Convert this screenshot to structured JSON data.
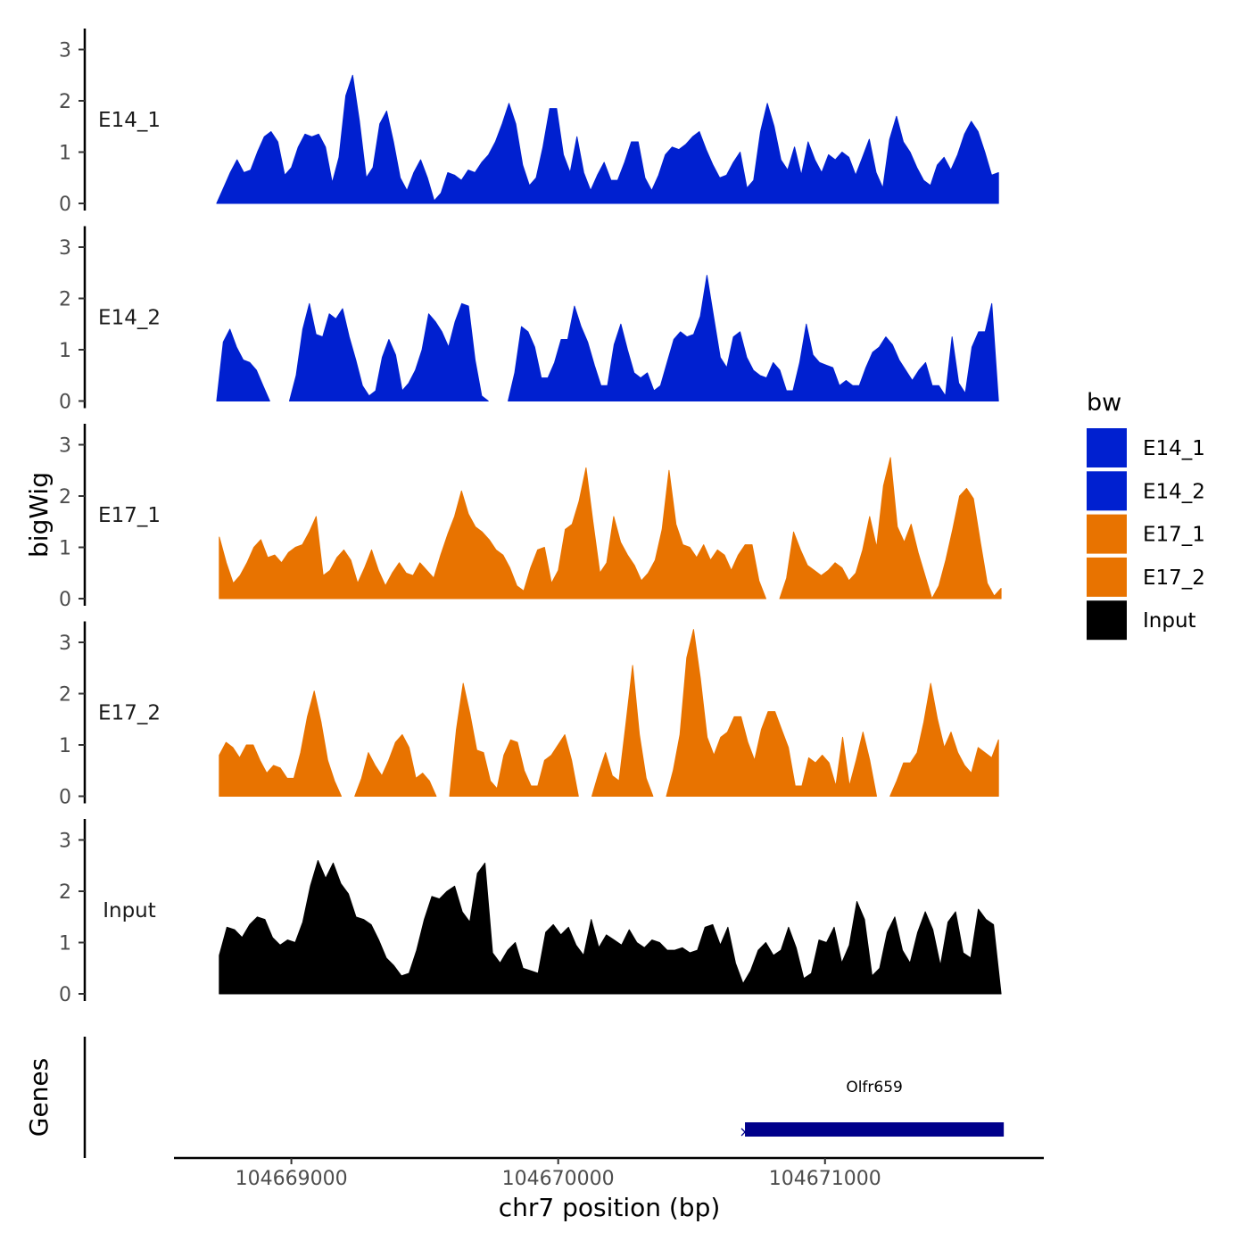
{
  "chart_data": {
    "type": "area",
    "chromosome": "chr7",
    "xlabel": "chr7 position (bp)",
    "ylabel": "bigWig",
    "genes_label": "Genes",
    "xlim": [
      104668560,
      104671820
    ],
    "x_ticks": [
      104669000,
      104670000,
      104671000
    ],
    "x_tick_labels": [
      "104669000",
      "104670000",
      "104671000"
    ],
    "ylim": [
      0,
      3.4
    ],
    "y_ticks": [
      0,
      1,
      2,
      3
    ],
    "y_tick_labels": [
      "0",
      "1",
      "2",
      "3"
    ],
    "legend": {
      "title": "bw",
      "position": "right",
      "entries": [
        {
          "label": "E14_1",
          "color": "#0020D0"
        },
        {
          "label": "E14_2",
          "color": "#0020D0"
        },
        {
          "label": "E17_1",
          "color": "#E87300"
        },
        {
          "label": "E17_2",
          "color": "#E87300"
        },
        {
          "label": "Input",
          "color": "#000000"
        }
      ]
    },
    "tracks": [
      {
        "name": "E14_1",
        "color": "#0020D0",
        "x_start": 104668720,
        "x_end": 104671650,
        "values": [
          0,
          0.3,
          0.6,
          0.85,
          0.6,
          0.65,
          1.0,
          1.3,
          1.4,
          1.2,
          0.55,
          0.7,
          1.1,
          1.35,
          1.3,
          1.35,
          1.1,
          0.4,
          0.9,
          2.1,
          2.5,
          1.6,
          0.5,
          0.7,
          1.55,
          1.8,
          1.2,
          0.5,
          0.25,
          0.6,
          0.85,
          0.5,
          0.05,
          0.2,
          0.6,
          0.55,
          0.45,
          0.65,
          0.6,
          0.8,
          0.95,
          1.2,
          1.55,
          1.95,
          1.55,
          0.75,
          0.35,
          0.5,
          1.1,
          1.85,
          1.85,
          0.95,
          0.6,
          1.3,
          0.6,
          0.25,
          0.55,
          0.8,
          0.45,
          0.45,
          0.8,
          1.2,
          1.2,
          0.5,
          0.25,
          0.55,
          0.95,
          1.1,
          1.05,
          1.15,
          1.3,
          1.4,
          1.05,
          0.75,
          0.5,
          0.55,
          0.8,
          1.0,
          0.3,
          0.45,
          1.4,
          1.95,
          1.5,
          0.85,
          0.65,
          1.1,
          0.55,
          1.2,
          0.85,
          0.6,
          0.95,
          0.85,
          1.0,
          0.9,
          0.55,
          0.9,
          1.25,
          0.6,
          0.3,
          1.25,
          1.7,
          1.2,
          1.0,
          0.7,
          0.45,
          0.35,
          0.75,
          0.9,
          0.65,
          0.95,
          1.35,
          1.6,
          1.4,
          1.0,
          0.55,
          0.6
        ]
      },
      {
        "name": "E14_2",
        "color": "#0020D0",
        "x_start": 104668720,
        "x_end": 104671650,
        "values": [
          0,
          1.15,
          1.4,
          1.05,
          0.8,
          0.75,
          0.6,
          0.3,
          0,
          null,
          null,
          0,
          0.5,
          1.4,
          1.9,
          1.3,
          1.25,
          1.7,
          1.6,
          1.8,
          1.25,
          0.8,
          0.3,
          0.1,
          0.2,
          0.85,
          1.2,
          0.9,
          0.2,
          0.35,
          0.6,
          1.0,
          1.7,
          1.55,
          1.35,
          1.05,
          1.55,
          1.9,
          1.85,
          0.8,
          0.1,
          0,
          null,
          null,
          0,
          0.55,
          1.45,
          1.35,
          1.05,
          0.45,
          0.45,
          0.75,
          1.2,
          1.2,
          1.85,
          1.45,
          1.15,
          0.7,
          0.3,
          0.3,
          1.1,
          1.5,
          1.0,
          0.55,
          0.45,
          0.55,
          0.2,
          0.3,
          0.75,
          1.2,
          1.35,
          1.25,
          1.3,
          1.65,
          2.45,
          1.65,
          0.85,
          0.65,
          1.25,
          1.35,
          0.85,
          0.6,
          0.5,
          0.45,
          0.75,
          0.6,
          0.2,
          0.2,
          0.75,
          1.5,
          0.9,
          0.75,
          0.7,
          0.65,
          0.3,
          0.4,
          0.3,
          0.3,
          0.65,
          0.95,
          1.05,
          1.25,
          1.1,
          0.8,
          0.6,
          0.4,
          0.6,
          0.75,
          0.3,
          0.3,
          0.1,
          1.25,
          0.35,
          0.15,
          1.05,
          1.35,
          1.35,
          1.9,
          0
        ]
      },
      {
        "name": "E17_1",
        "color": "#E87300",
        "x_start": 104668730,
        "x_end": 104671660,
        "values": [
          1.2,
          0.7,
          0.3,
          0.45,
          0.7,
          1.0,
          1.15,
          0.8,
          0.85,
          0.7,
          0.9,
          1.0,
          1.05,
          1.3,
          1.6,
          0.45,
          0.55,
          0.8,
          0.95,
          0.75,
          0.3,
          0.6,
          0.95,
          0.55,
          0.25,
          0.5,
          0.7,
          0.5,
          0.45,
          0.7,
          0.55,
          0.4,
          0.85,
          1.25,
          1.6,
          2.1,
          1.65,
          1.4,
          1.3,
          1.15,
          0.95,
          0.85,
          0.6,
          0.25,
          0.15,
          0.6,
          0.95,
          1.0,
          0.3,
          0.55,
          1.35,
          1.45,
          1.9,
          2.55,
          1.5,
          0.5,
          0.7,
          1.6,
          1.1,
          0.85,
          0.65,
          0.35,
          0.5,
          0.75,
          1.35,
          2.5,
          1.45,
          1.05,
          1.0,
          0.8,
          1.05,
          0.75,
          0.95,
          0.85,
          0.55,
          0.85,
          1.05,
          1.05,
          0.35,
          0,
          null,
          0,
          0.4,
          1.3,
          0.95,
          0.65,
          0.55,
          0.45,
          0.55,
          0.7,
          0.6,
          0.35,
          0.5,
          0.95,
          1.6,
          1.0,
          2.2,
          2.75,
          1.4,
          1.1,
          1.45,
          0.9,
          0.45,
          0,
          0.25,
          0.75,
          1.35,
          2.0,
          2.15,
          1.95,
          1.1,
          0.3,
          0.05,
          0.2
        ]
      },
      {
        "name": "E17_2",
        "color": "#E87300",
        "x_start": 104668730,
        "x_end": 104671650,
        "values": [
          0.8,
          1.05,
          0.95,
          0.75,
          1.0,
          1.0,
          0.7,
          0.45,
          0.6,
          0.55,
          0.35,
          0.35,
          0.85,
          1.55,
          2.05,
          1.45,
          0.7,
          0.3,
          0,
          null,
          0,
          0.35,
          0.85,
          0.6,
          0.4,
          0.7,
          1.05,
          1.2,
          0.95,
          0.35,
          0.45,
          0.3,
          0,
          null,
          0,
          1.3,
          2.2,
          1.6,
          0.9,
          0.85,
          0.3,
          0.15,
          0.8,
          1.1,
          1.05,
          0.5,
          0.2,
          0.2,
          0.7,
          0.8,
          1.0,
          1.2,
          0.7,
          0,
          null,
          0,
          0.45,
          0.85,
          0.4,
          0.3,
          1.4,
          2.55,
          1.2,
          0.35,
          0,
          null,
          0,
          0.5,
          1.2,
          2.7,
          3.25,
          2.3,
          1.15,
          0.8,
          1.15,
          1.25,
          1.55,
          1.55,
          1.05,
          0.7,
          1.3,
          1.65,
          1.65,
          1.3,
          0.95,
          0.2,
          0.2,
          0.75,
          0.65,
          0.8,
          0.65,
          0.2,
          1.15,
          0.2,
          0.7,
          1.25,
          0.7,
          0,
          null,
          0,
          0.3,
          0.65,
          0.65,
          0.85,
          1.45,
          2.2,
          1.5,
          0.95,
          1.25,
          0.85,
          0.6,
          0.45,
          0.95,
          0.85,
          0.75,
          1.1
        ]
      },
      {
        "name": "Input",
        "color": "#000000",
        "x_start": 104668730,
        "x_end": 104671660,
        "values": [
          0.75,
          1.3,
          1.25,
          1.1,
          1.35,
          1.5,
          1.45,
          1.1,
          0.95,
          1.05,
          1.0,
          1.4,
          2.1,
          2.6,
          2.25,
          2.55,
          2.15,
          1.95,
          1.5,
          1.45,
          1.35,
          1.05,
          0.7,
          0.55,
          0.35,
          0.4,
          0.85,
          1.45,
          1.9,
          1.85,
          2.0,
          2.1,
          1.6,
          1.4,
          2.35,
          2.55,
          0.8,
          0.6,
          0.85,
          1.0,
          0.5,
          0.45,
          0.4,
          1.2,
          1.35,
          1.15,
          1.3,
          0.95,
          0.75,
          1.45,
          0.9,
          1.15,
          1.05,
          0.95,
          1.25,
          1.0,
          0.9,
          1.05,
          1.0,
          0.85,
          0.85,
          0.9,
          0.8,
          0.85,
          1.3,
          1.35,
          0.95,
          1.3,
          0.6,
          0.2,
          0.45,
          0.85,
          1.0,
          0.75,
          0.85,
          1.3,
          0.9,
          0.3,
          0.4,
          1.05,
          1.0,
          1.3,
          0.6,
          0.95,
          1.8,
          1.45,
          0.35,
          0.5,
          1.2,
          1.5,
          0.85,
          0.6,
          1.2,
          1.6,
          1.25,
          0.55,
          1.4,
          1.6,
          0.8,
          0.7,
          1.65,
          1.45,
          1.35,
          0
        ]
      }
    ],
    "genes": [
      {
        "name": "Olfr659",
        "start": 104670700,
        "end": 104671670,
        "color": "#00008B"
      }
    ]
  }
}
